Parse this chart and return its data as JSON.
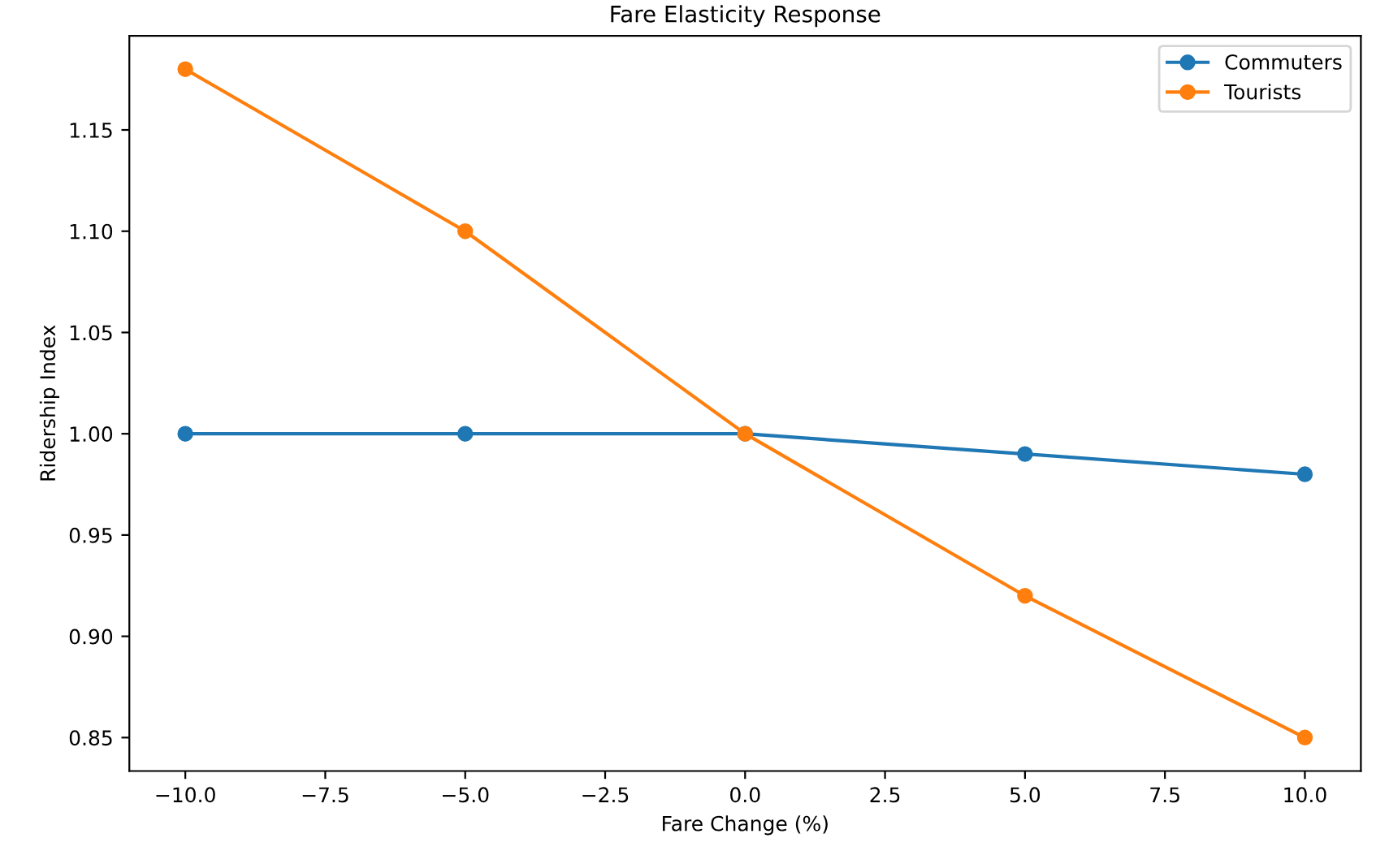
{
  "chart_data": {
    "type": "line",
    "title": "Fare Elasticity Response",
    "xlabel": "Fare Change (%)",
    "ylabel": "Ridership Index",
    "x": [
      -10,
      -5,
      0,
      5,
      10
    ],
    "series": [
      {
        "name": "Commuters",
        "color": "#1f77b4",
        "values": [
          1.0,
          1.0,
          1.0,
          0.99,
          0.98
        ]
      },
      {
        "name": "Tourists",
        "color": "#ff7f0e",
        "values": [
          1.18,
          1.1,
          1.0,
          0.92,
          0.85
        ]
      }
    ],
    "xlim": [
      -11,
      11
    ],
    "ylim": [
      0.8335,
      1.1965
    ],
    "xticks": [
      {
        "value": -10,
        "label": "−10.0"
      },
      {
        "value": -7.5,
        "label": "−7.5"
      },
      {
        "value": -5,
        "label": "−5.0"
      },
      {
        "value": -2.5,
        "label": "−2.5"
      },
      {
        "value": 0,
        "label": "0.0"
      },
      {
        "value": 2.5,
        "label": "2.5"
      },
      {
        "value": 5,
        "label": "5.0"
      },
      {
        "value": 7.5,
        "label": "7.5"
      },
      {
        "value": 10,
        "label": "10.0"
      }
    ],
    "yticks": [
      {
        "value": 0.85,
        "label": "0.85"
      },
      {
        "value": 0.9,
        "label": "0.90"
      },
      {
        "value": 0.95,
        "label": "0.95"
      },
      {
        "value": 1.0,
        "label": "1.00"
      },
      {
        "value": 1.05,
        "label": "1.05"
      },
      {
        "value": 1.1,
        "label": "1.10"
      },
      {
        "value": 1.15,
        "label": "1.15"
      }
    ],
    "grid": false,
    "legend": "top right",
    "marker": "circle",
    "line_style": "solid"
  }
}
